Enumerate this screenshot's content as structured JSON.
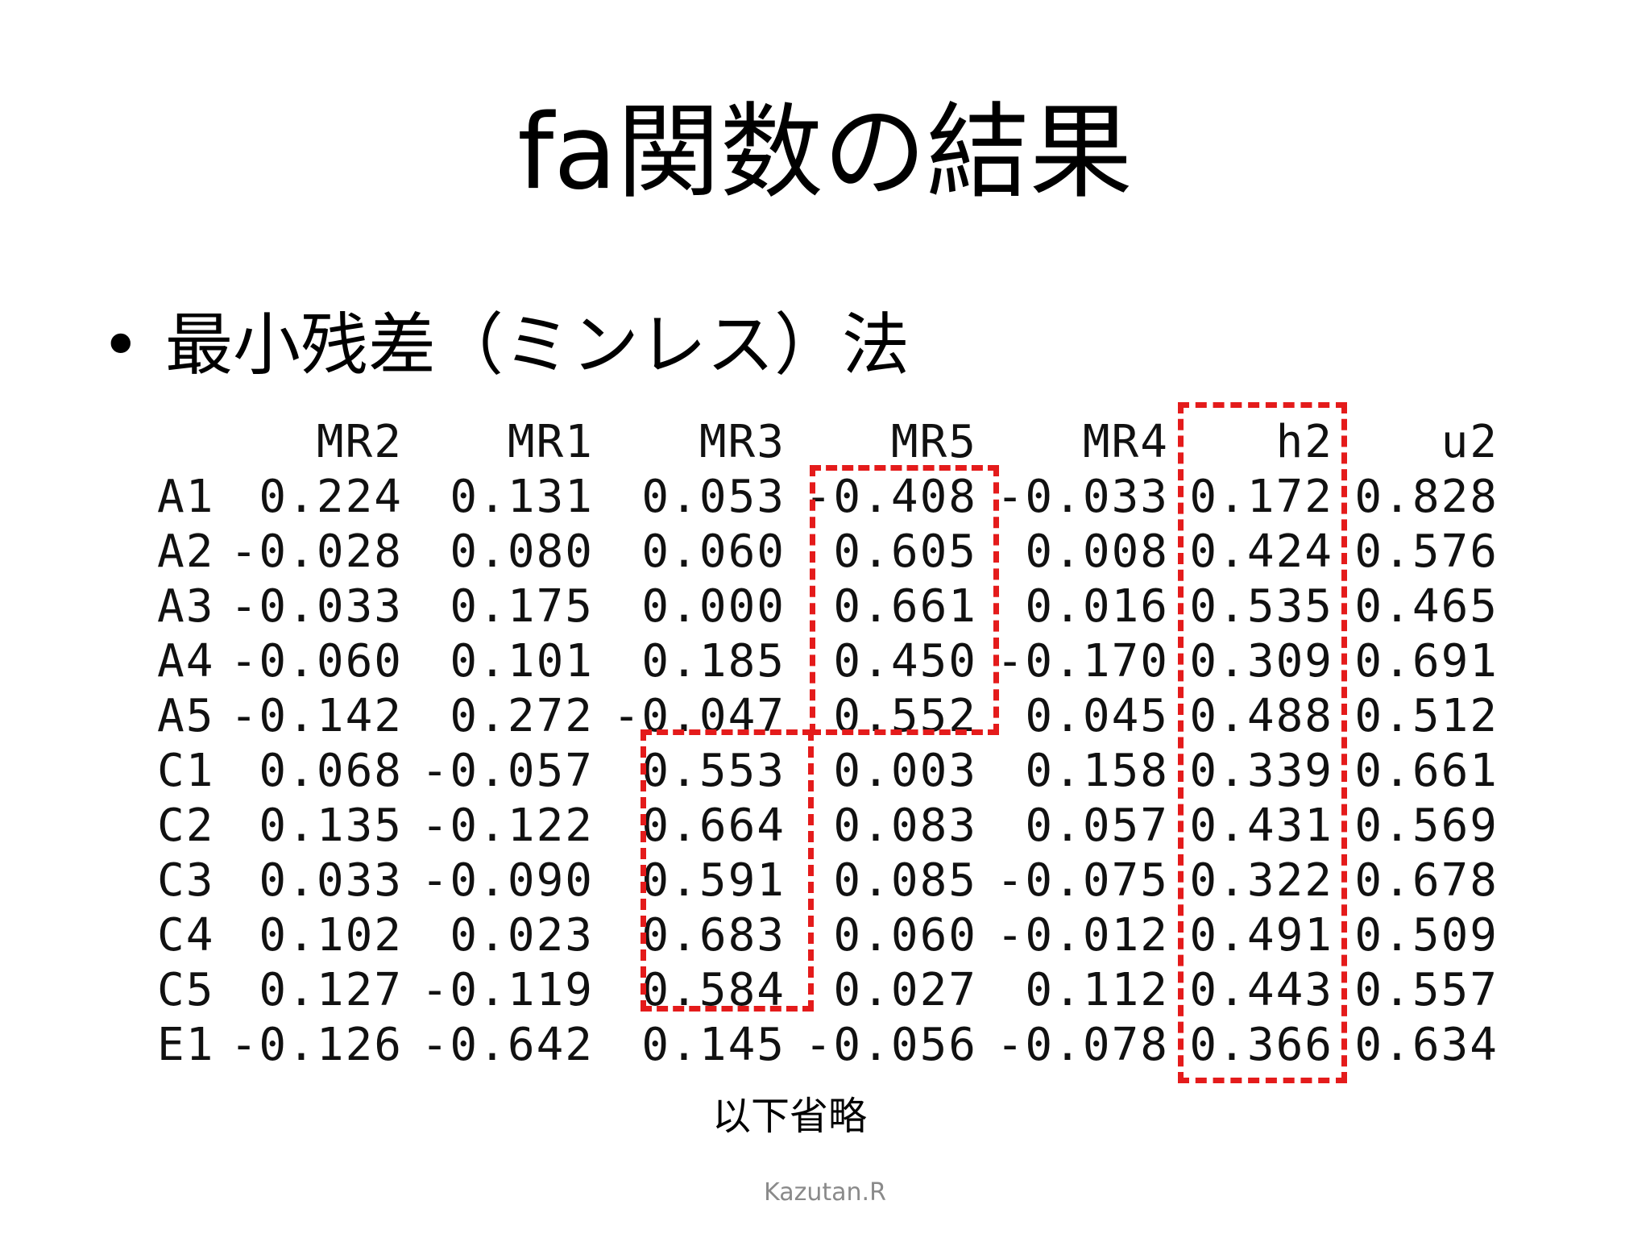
{
  "slide": {
    "title": "fa関数の結果",
    "bullet": "最小残差（ミンレス）法",
    "omitted_note": "以下省略",
    "footer": "Kazutan.R"
  },
  "colors": {
    "highlight_box": "#e41b1b"
  },
  "table": {
    "columns": [
      "MR2",
      "MR1",
      "MR3",
      "MR5",
      "MR4",
      "h2",
      "u2"
    ],
    "rows": [
      {
        "label": "A1",
        "values": [
          "0.224",
          "0.131",
          "0.053",
          "-0.408",
          "-0.033",
          "0.172",
          "0.828"
        ]
      },
      {
        "label": "A2",
        "values": [
          "-0.028",
          "0.080",
          "0.060",
          "0.605",
          "0.008",
          "0.424",
          "0.576"
        ]
      },
      {
        "label": "A3",
        "values": [
          "-0.033",
          "0.175",
          "0.000",
          "0.661",
          "0.016",
          "0.535",
          "0.465"
        ]
      },
      {
        "label": "A4",
        "values": [
          "-0.060",
          "0.101",
          "0.185",
          "0.450",
          "-0.170",
          "0.309",
          "0.691"
        ]
      },
      {
        "label": "A5",
        "values": [
          "-0.142",
          "0.272",
          "-0.047",
          "0.552",
          "0.045",
          "0.488",
          "0.512"
        ]
      },
      {
        "label": "C1",
        "values": [
          "0.068",
          "-0.057",
          "0.553",
          "0.003",
          "0.158",
          "0.339",
          "0.661"
        ]
      },
      {
        "label": "C2",
        "values": [
          "0.135",
          "-0.122",
          "0.664",
          "0.083",
          "0.057",
          "0.431",
          "0.569"
        ]
      },
      {
        "label": "C3",
        "values": [
          "0.033",
          "-0.090",
          "0.591",
          "0.085",
          "-0.075",
          "0.322",
          "0.678"
        ]
      },
      {
        "label": "C4",
        "values": [
          "0.102",
          "0.023",
          "0.683",
          "0.060",
          "-0.012",
          "0.491",
          "0.509"
        ]
      },
      {
        "label": "C5",
        "values": [
          "0.127",
          "-0.119",
          "0.584",
          "0.027",
          "0.112",
          "0.443",
          "0.557"
        ]
      },
      {
        "label": "E1",
        "values": [
          "-0.126",
          "-0.642",
          "0.145",
          "-0.056",
          "-0.078",
          "0.366",
          "0.634"
        ]
      }
    ]
  }
}
